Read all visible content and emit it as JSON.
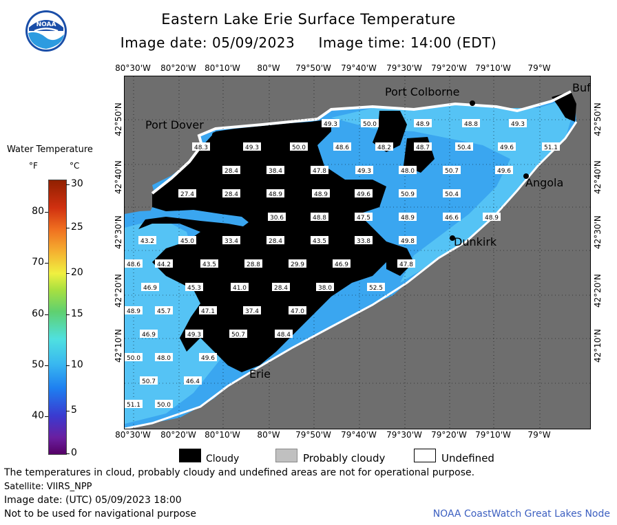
{
  "title": "Eastern Lake Erie Surface Temperature",
  "subtitle": "Image date: 05/09/2023     Image time: 14:00 (EDT)",
  "logo_text": "NOAA",
  "legend": {
    "title": "Water Temperature",
    "unit_f": "°F",
    "unit_c": "°C",
    "f_ticks": [
      "80",
      "70",
      "60",
      "50",
      "40"
    ],
    "c_ticks": [
      "30",
      "25",
      "20",
      "15",
      "10",
      "5",
      "0"
    ]
  },
  "longitudes": [
    "80°30'W",
    "80°20'W",
    "80°10'W",
    "80°W",
    "79°50'W",
    "79°40'W",
    "79°30'W",
    "79°20'W",
    "79°10'W",
    "79°W"
  ],
  "latitudes": [
    "42°50'N",
    "42°40'N",
    "42°30'N",
    "42°20'N",
    "42°10'N"
  ],
  "places": [
    {
      "name": "Port Colborne"
    },
    {
      "name": "Port Dover"
    },
    {
      "name": "Buf"
    },
    {
      "name": "Angola"
    },
    {
      "name": "Dunkirk"
    },
    {
      "name": "Erie"
    }
  ],
  "temperature_labels": [
    "49.3",
    "50.0",
    "48.9",
    "48.8",
    "49.3",
    "48.3",
    "49.3",
    "50.0",
    "48.6",
    "48.2",
    "48.7",
    "50.4",
    "49.6",
    "51.1",
    "28.4",
    "38.4",
    "47.8",
    "49.3",
    "48.0",
    "50.7",
    "49.6",
    "27.4",
    "28.4",
    "48.9",
    "48.9",
    "49.6",
    "50.9",
    "50.4",
    "30.6",
    "48.8",
    "47.5",
    "48.9",
    "46.6",
    "48.9",
    "43.2",
    "45.0",
    "33.4",
    "28.4",
    "43.5",
    "33.8",
    "49.8",
    "48.6",
    "44.2",
    "43.5",
    "28.8",
    "29.9",
    "46.9",
    "47.8",
    "46.9",
    "45.3",
    "41.0",
    "28.4",
    "38.0",
    "52.5",
    "48.9",
    "45.7",
    "47.1",
    "37.4",
    "47.0",
    "46.9",
    "49.3",
    "50.7",
    "48.4",
    "50.0",
    "48.0",
    "49.6",
    "50.7",
    "46.4",
    "51.1",
    "50.0"
  ],
  "legend_items": {
    "cloudy": "Cloudy",
    "probably_cloudy": "Probably cloudy",
    "undefined": "Undefined"
  },
  "footer": {
    "disclaimer": "The temperatures in cloud, probably cloudy and undefined areas are not for operational purpose.",
    "satellite": "Satellite: VIIRS_NPP",
    "utc_date": "Image date: (UTC) 05/09/2023  18:00",
    "nav_note": "Not to be used for navigational purpose",
    "credit": "NOAA CoastWatch Great Lakes Node"
  },
  "colors": {
    "land": "#6e6e6e",
    "cloud": "#000000",
    "water_cool": "#3aa6f0",
    "water_warm": "#55c3f5",
    "label_bg": "#ffffff"
  }
}
